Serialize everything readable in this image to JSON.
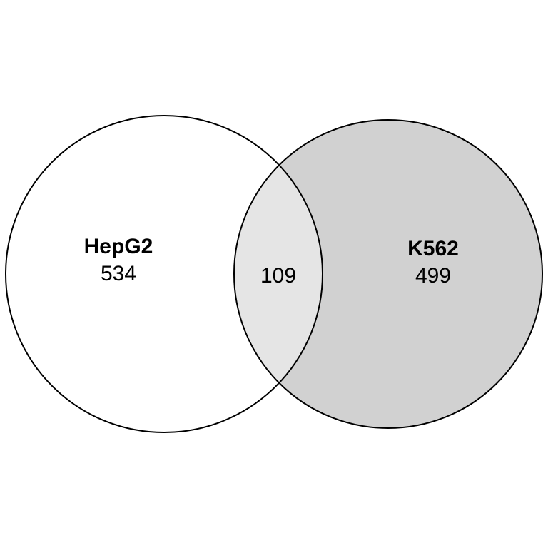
{
  "diagram": {
    "type": "venn",
    "sets": [
      {
        "name": "HepG2",
        "unique_count": "534",
        "fill": "#ffffff",
        "stroke": "#000000"
      },
      {
        "name": "K562",
        "unique_count": "499",
        "fill": "#d1d1d1",
        "stroke": "#000000"
      }
    ],
    "intersection": {
      "count": "109",
      "fill": "#e5e5e5"
    }
  }
}
